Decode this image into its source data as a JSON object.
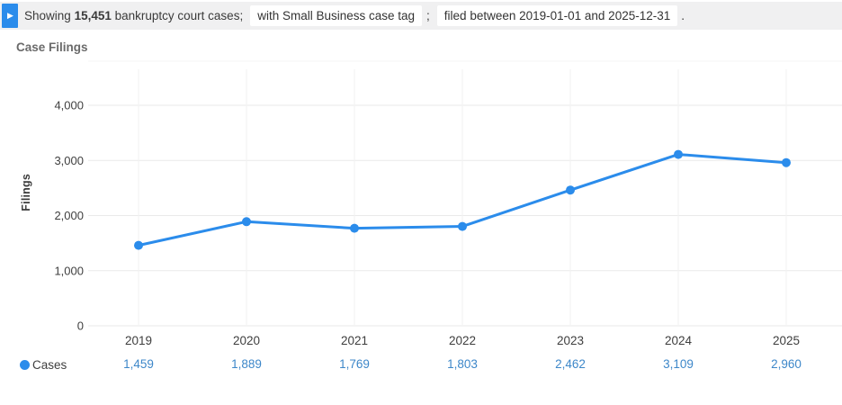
{
  "header": {
    "expand_icon": "▶",
    "prefix": "Showing",
    "count": "15,451",
    "suffix": "bankruptcy court cases;",
    "chip1": "with Small Business case tag",
    "sep1": ";",
    "chip2": "filed between 2019-01-01 and 2025-12-31",
    "sep2": "."
  },
  "chart_title": "Case Filings",
  "legend": {
    "label": "Cases"
  },
  "colors": {
    "accent_blue": "#2b8ceb",
    "value_link_blue": "#3d87c9",
    "header_bg": "#f0f0f1",
    "chip_bg": "#ffffff",
    "h_gridline": "#eaeaea",
    "v_gridline": "#f2f2f2",
    "tick_text": "#3f3f3f"
  },
  "chart_data": {
    "type": "line",
    "title": "Case Filings",
    "xlabel": "",
    "ylabel": "Filings",
    "categories": [
      "2019",
      "2020",
      "2021",
      "2022",
      "2023",
      "2024",
      "2025"
    ],
    "series": [
      {
        "name": "Cases",
        "values": [
          1459,
          1889,
          1769,
          1803,
          2462,
          3109,
          2960
        ]
      }
    ],
    "value_labels": [
      "1,459",
      "1,889",
      "1,769",
      "1,803",
      "2,462",
      "3,109",
      "2,960"
    ],
    "yticks": [
      0,
      1000,
      2000,
      3000,
      4000
    ],
    "ytick_labels": [
      "0",
      "1,000",
      "2,000",
      "3,000",
      "4,000"
    ],
    "ylim": [
      0,
      4500
    ],
    "grid": true,
    "legend_position": "bottom-left",
    "line_color": "#2b8ceb"
  }
}
